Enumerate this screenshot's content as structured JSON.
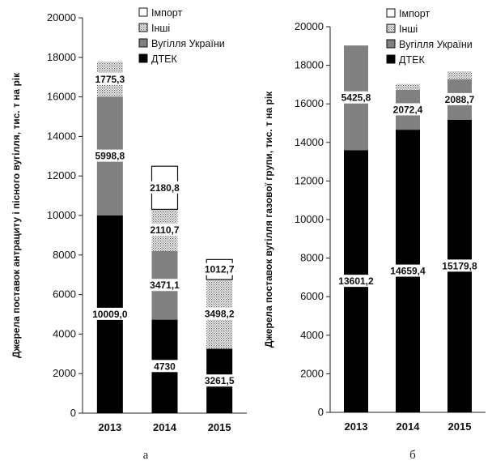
{
  "chart_data": [
    {
      "type": "bar",
      "stacked": true,
      "panel_label": "а",
      "ylabel": "Джерела поставок антрациту і пісного вугілля, тис. т на рік",
      "categories": [
        "2013",
        "2014",
        "2015"
      ],
      "ylim": [
        0,
        20000
      ],
      "yticks": [
        "0",
        "2000",
        "4000",
        "6000",
        "8000",
        "10000",
        "12000",
        "14000",
        "16000",
        "18000",
        "20000"
      ],
      "series": [
        {
          "name": "ДТЕК",
          "color": "#000000",
          "pattern": "solid",
          "values": [
            10009.0,
            4730,
            3261.5
          ],
          "labels": [
            "10009,0",
            "4730",
            "3261,5"
          ]
        },
        {
          "name": "Вугілля України",
          "color": "#808080",
          "pattern": "solid",
          "values": [
            5998.8,
            3471.1,
            0
          ],
          "labels": [
            "5998,8",
            "3471,1",
            ""
          ]
        },
        {
          "name": "Інші",
          "color": "#d8d8d8",
          "pattern": "dotted",
          "values": [
            1775.3,
            2110.7,
            3498.2
          ],
          "labels": [
            "1775,3",
            "2110,7",
            "3498,2"
          ]
        },
        {
          "name": "Імпорт",
          "color": "#ffffff",
          "pattern": "outline",
          "values": [
            0,
            2180.8,
            1012.7
          ],
          "labels": [
            "",
            "2180,8",
            "1012,7"
          ]
        }
      ],
      "legend_position": "top-right"
    },
    {
      "type": "bar",
      "stacked": true,
      "panel_label": "б",
      "ylabel": "Джерела поставок вугілля газової групи, тис. т на рік",
      "categories": [
        "2013",
        "2014",
        "2015"
      ],
      "ylim": [
        0,
        20000
      ],
      "yticks": [
        "0",
        "2000",
        "4000",
        "6000",
        "8000",
        "10000",
        "12000",
        "14000",
        "16000",
        "18000",
        "20000"
      ],
      "series": [
        {
          "name": "ДТЕК",
          "color": "#000000",
          "pattern": "solid",
          "values": [
            13601.2,
            14659.4,
            15179.8
          ],
          "labels": [
            "13601,2",
            "14659,4",
            "15179,8"
          ]
        },
        {
          "name": "Вугілля України",
          "color": "#808080",
          "pattern": "solid",
          "values": [
            5425.8,
            2072.4,
            2088.7
          ],
          "labels": [
            "5425,8",
            "2072,4",
            "2088,7"
          ]
        },
        {
          "name": "Інші",
          "color": "#d8d8d8",
          "pattern": "dotted",
          "values": [
            0,
            300,
            420
          ],
          "labels": [
            "",
            "",
            ""
          ]
        },
        {
          "name": "Імпорт",
          "color": "#ffffff",
          "pattern": "outline",
          "values": [
            0,
            0,
            0
          ],
          "labels": [
            "",
            "",
            ""
          ]
        }
      ],
      "legend_position": "top-right"
    }
  ]
}
